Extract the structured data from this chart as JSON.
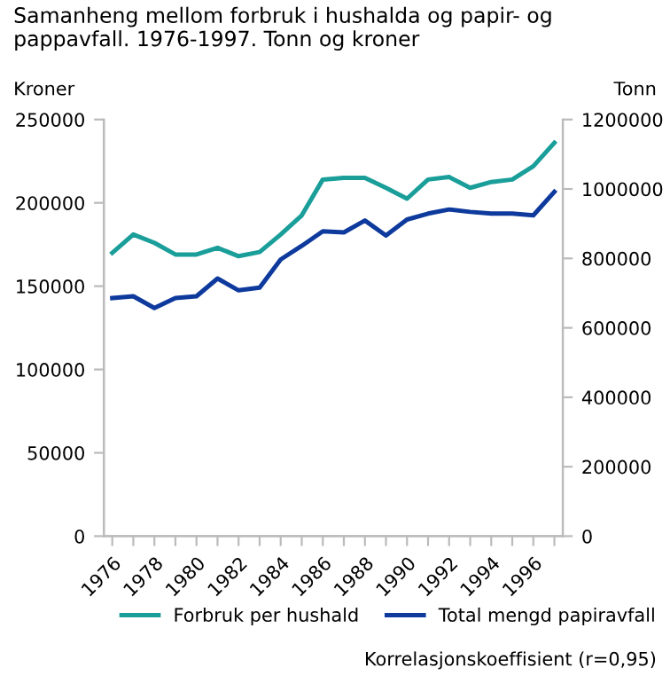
{
  "chart_data": {
    "type": "line",
    "title": "Samanheng mellom forbruk i hushalda og papir- og pappavfall. 1976-1997. Tonn og kroner",
    "ylabel": "Kroner",
    "y2label": "Tonn",
    "x": [
      1976,
      1977,
      1978,
      1979,
      1980,
      1981,
      1982,
      1983,
      1984,
      1985,
      1986,
      1987,
      1988,
      1989,
      1990,
      1991,
      1992,
      1993,
      1994,
      1995,
      1996,
      1997
    ],
    "series": [
      {
        "name": "Forbruk per hushald",
        "color": "#1a9e9a",
        "values": [
          170000,
          181000,
          176000,
          169000,
          169000,
          173000,
          168000,
          170500,
          181000,
          192500,
          214000,
          215000,
          215000,
          209000,
          202500,
          214000,
          215500,
          209000,
          212500,
          214000,
          222000,
          236000
        ]
      },
      {
        "name": "Total mengd papiravfall",
        "color": "#0d3a9c",
        "axis": "y2",
        "values": [
          686000,
          691000,
          657000,
          686000,
          691000,
          742000,
          708000,
          716000,
          797000,
          836000,
          878000,
          875000,
          909000,
          866000,
          912000,
          929000,
          941000,
          934000,
          929000,
          929000,
          924000,
          992000
        ]
      }
    ],
    "xlim": [
      1975.6,
      1997.4
    ],
    "xticks": [
      1976,
      {
        "value": 1977,
        "label": null
      },
      1978,
      {
        "value": 1979,
        "label": null
      },
      1980,
      {
        "value": 1981,
        "label": null
      },
      1982,
      {
        "value": 1983,
        "label": null
      },
      1984,
      {
        "value": 1985,
        "label": null
      },
      1986,
      {
        "value": 1987,
        "label": null
      },
      1988,
      {
        "value": 1989,
        "label": null
      },
      1990,
      {
        "value": 1991,
        "label": null
      },
      1992,
      {
        "value": 1993,
        "label": null
      },
      1994,
      {
        "value": 1995,
        "label": null
      },
      1996,
      {
        "value": 1997,
        "label": null
      }
    ],
    "ylim": [
      0,
      250000
    ],
    "yticks": [
      0,
      50000,
      100000,
      150000,
      200000,
      250000
    ],
    "y2lim": [
      0,
      1200000
    ],
    "y2ticks": [
      0,
      200000,
      400000,
      600000,
      800000,
      1000000,
      1200000
    ],
    "grid": false,
    "legend": "bottom",
    "marker": "none",
    "line_style": "solid",
    "annotations": [
      "Korrelasjonskoeffisient (r=0,95)"
    ]
  }
}
